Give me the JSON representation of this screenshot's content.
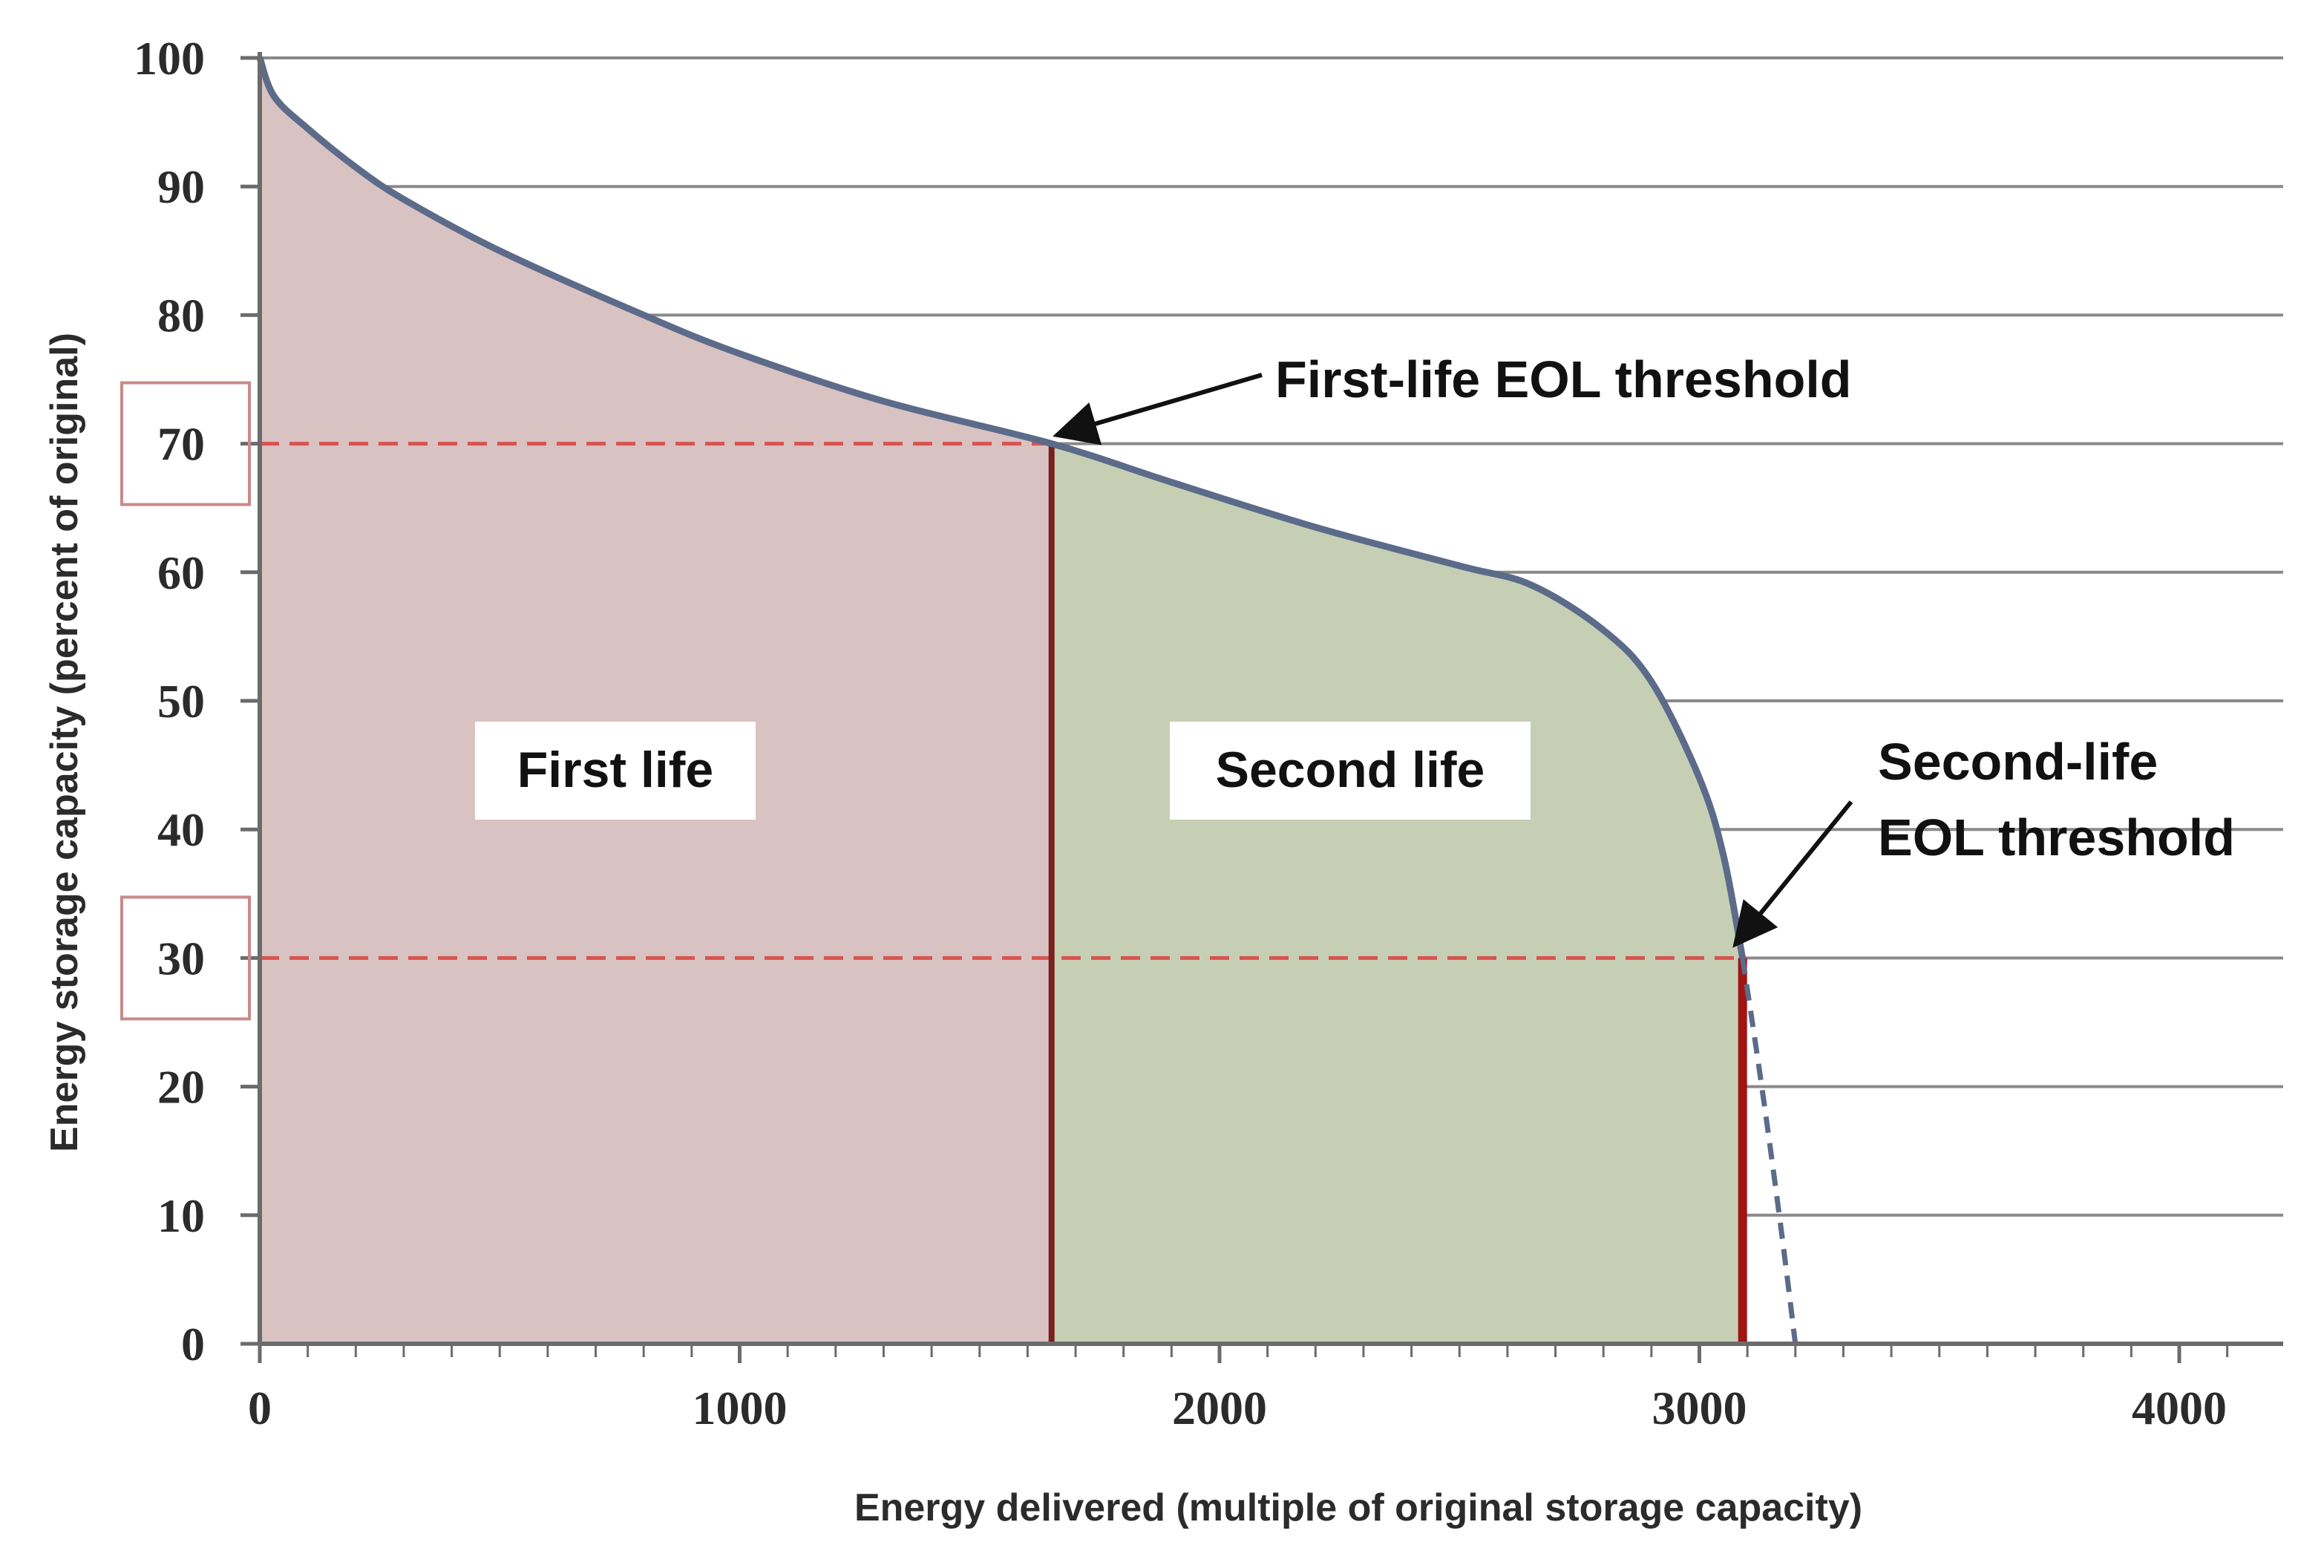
{
  "chart_data": {
    "type": "area",
    "title": "",
    "xlabel": "Energy delivered  (multiple of original storage capacity)",
    "ylabel": "Energy storage capacity  (percent of original)",
    "xlim": [
      0,
      4200
    ],
    "ylim": [
      0,
      100
    ],
    "x_ticks": [
      "0",
      "1000",
      "2000",
      "3000",
      "4000"
    ],
    "x_tick_values": [
      0,
      1000,
      2000,
      3000,
      4000
    ],
    "y_ticks": [
      "0",
      "10",
      "20",
      "30",
      "40",
      "50",
      "60",
      "70",
      "80",
      "90",
      "100"
    ],
    "y_tick_values": [
      0,
      10,
      20,
      30,
      40,
      50,
      60,
      70,
      80,
      90,
      100
    ],
    "highlighted_y_ticks": [
      30,
      70
    ],
    "grid": "horizontal",
    "series": [
      {
        "name": "capacity",
        "x": [
          0,
          30,
          100,
          200,
          300,
          500,
          800,
          1000,
          1300,
          1650,
          1900,
          2200,
          2500,
          2650,
          2800,
          2900,
          3000,
          3050,
          3090
        ],
        "y": [
          100,
          97,
          94.5,
          91.5,
          89,
          85,
          80,
          77,
          73.3,
          70,
          67,
          63.5,
          60.5,
          59,
          55.5,
          51.5,
          44,
          38,
          30
        ]
      },
      {
        "name": "extrapolation",
        "style": "dashed",
        "x": [
          3090,
          3130,
          3170,
          3200
        ],
        "y": [
          30,
          20,
          9,
          0
        ]
      }
    ],
    "regions": [
      {
        "name": "First life",
        "x_start": 0,
        "x_end": 1650,
        "color": "#d9c2c2"
      },
      {
        "name": "Second life",
        "x_start": 1650,
        "x_end": 3090,
        "color": "#c6cfb4"
      }
    ],
    "thresholds": [
      {
        "y": 70,
        "x": 1650
      },
      {
        "y": 30,
        "x": 3090
      }
    ],
    "annotations": [
      {
        "lines": [
          "First-life EOL threshold"
        ]
      },
      {
        "lines": [
          "Second-life",
          "EOL threshold"
        ]
      }
    ],
    "colors": {
      "curve": "#5c6b8a",
      "threshold_dash": "#d9534f",
      "first_life_divider": "#7a1f1f",
      "second_life_divider": "#a01414",
      "grid": "#8a8a8a"
    }
  }
}
